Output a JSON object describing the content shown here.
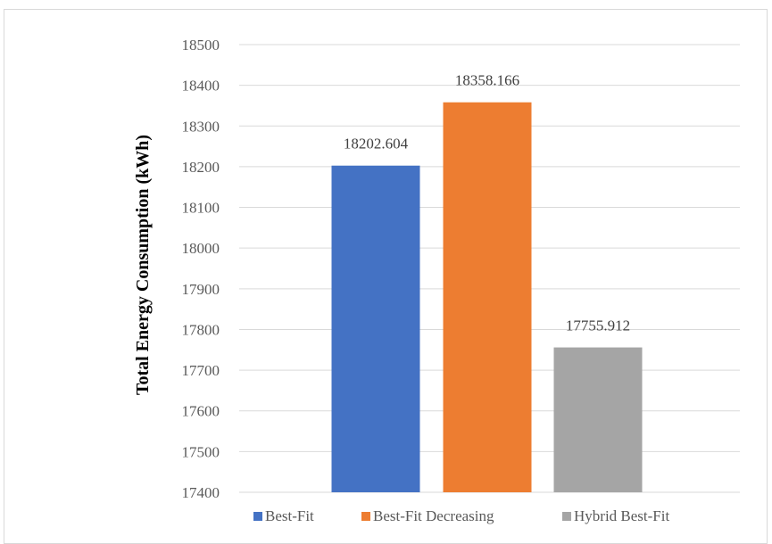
{
  "chart_data": {
    "type": "bar",
    "categories": [
      "Best-Fit",
      "Best-Fit Decreasing",
      "Hybrid Best-Fit"
    ],
    "values": [
      18202.604,
      18358.166,
      17755.912
    ],
    "data_labels": [
      "18202.604",
      "18358.166",
      "17755.912"
    ],
    "colors": [
      "#4472c4",
      "#ed7d31",
      "#a5a5a5"
    ],
    "title": "",
    "xlabel": "",
    "ylabel": "Total Energy Consumption (kWh)",
    "ylim": [
      17400,
      18500
    ],
    "yticks": [
      17400,
      17500,
      17600,
      17700,
      17800,
      17900,
      18000,
      18100,
      18200,
      18300,
      18400,
      18500
    ],
    "grid": true,
    "legend": {
      "placement": "bottom",
      "entries": [
        "Best-Fit",
        "Best-Fit Decreasing",
        "Hybrid Best-Fit"
      ]
    }
  }
}
